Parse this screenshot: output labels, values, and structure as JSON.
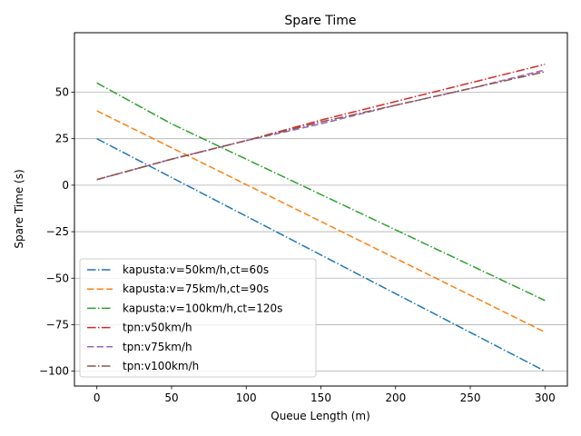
{
  "chart_data": {
    "type": "line",
    "title": "Spare Time",
    "xlabel": "Queue Length (m)",
    "ylabel": "Spare Time (s)",
    "xlim": [
      -15,
      315
    ],
    "ylim": [
      -108,
      82
    ],
    "xticks": [
      0,
      50,
      100,
      150,
      200,
      250,
      300
    ],
    "yticks": [
      -100,
      -75,
      -50,
      -25,
      0,
      25,
      50
    ],
    "grid": "y",
    "legend_position": "lower-left",
    "series": [
      {
        "name": "kapusta:v=50km/h,ct=60s",
        "color": "#1f77b4",
        "dash": "dashdot",
        "x": [
          0,
          300
        ],
        "y": [
          25,
          -100
        ]
      },
      {
        "name": "kapusta:v=75km/h,ct=90s",
        "color": "#ff7f0e",
        "dash": "dashed",
        "x": [
          0,
          300
        ],
        "y": [
          40,
          -79
        ]
      },
      {
        "name": "kapusta:v=100km/h,ct=120s",
        "color": "#2ca02c",
        "dash": "dashdot",
        "x": [
          0,
          50,
          300
        ],
        "y": [
          55,
          33,
          -62
        ]
      },
      {
        "name": "tpn:v50km/h",
        "color": "#d62728",
        "dash": "dashdot",
        "x": [
          0,
          50,
          100,
          150,
          200,
          250,
          300
        ],
        "y": [
          3,
          14,
          24,
          35,
          45,
          55,
          65
        ]
      },
      {
        "name": "tpn:v75km/h",
        "color": "#9467bd",
        "dash": "dashed",
        "x": [
          0,
          50,
          100,
          150,
          200,
          250,
          300
        ],
        "y": [
          3,
          14,
          24,
          33,
          43,
          52,
          62
        ]
      },
      {
        "name": "tpn:v100km/h",
        "color": "#8c564b",
        "dash": "dashdot",
        "x": [
          0,
          50,
          100,
          150,
          200,
          250,
          300
        ],
        "y": [
          3,
          14,
          24,
          34,
          43,
          52,
          61
        ]
      }
    ]
  }
}
